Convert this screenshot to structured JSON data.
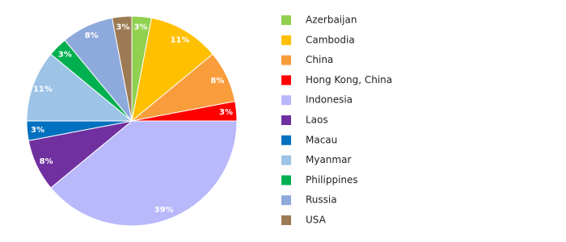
{
  "chart_data": {
    "type": "pie",
    "categories": [
      "Azerbaijan",
      "Cambodia",
      "China",
      "Hong Kong, China",
      "Indonesia",
      "Laos",
      "Macau",
      "Myanmar",
      "Philippines",
      "Russia",
      "USA"
    ],
    "values": [
      3,
      11,
      8,
      3,
      39,
      8,
      3,
      11,
      3,
      8,
      3
    ],
    "value_labels": [
      "3%",
      "11%",
      "8%",
      "3%",
      "39%",
      "8%",
      "3%",
      "11%",
      "3%",
      "8%",
      "3%"
    ],
    "colors": [
      "#92d050",
      "#ffc000",
      "#f99d3c",
      "#ff0000",
      "#b8b8fb",
      "#7030a0",
      "#0070c0",
      "#9dc3e6",
      "#00b050",
      "#8ea9db",
      "#9c7a53"
    ],
    "legend": "right"
  }
}
